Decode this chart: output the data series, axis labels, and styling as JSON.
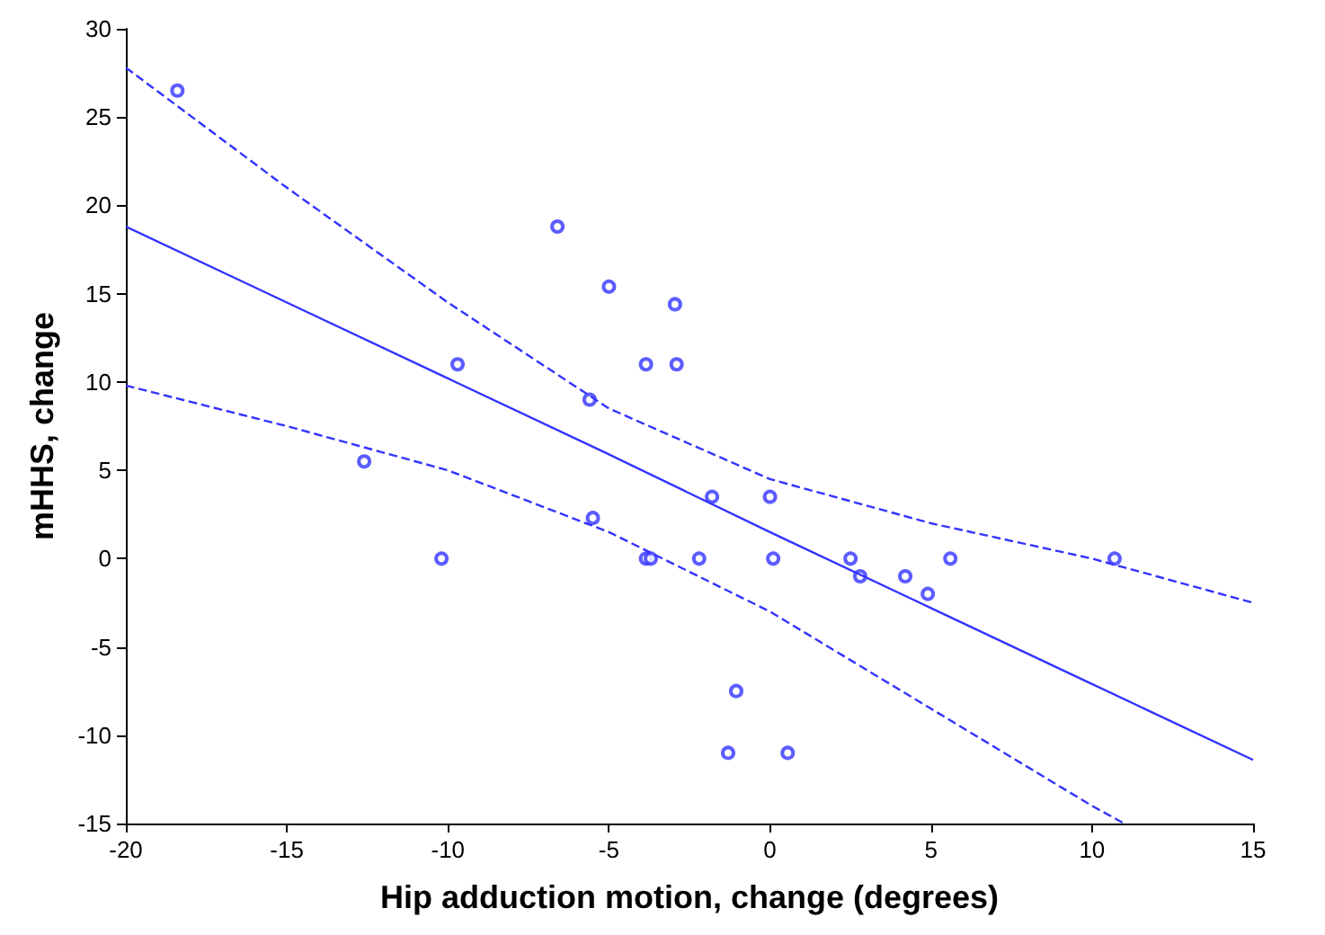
{
  "chart_data": {
    "type": "scatter",
    "xlabel": "Hip adduction motion, change (degrees)",
    "ylabel": "mHHS, change",
    "xlim": [
      -20,
      15
    ],
    "ylim": [
      -15,
      30
    ],
    "xticks": [
      -20,
      -15,
      -10,
      -5,
      0,
      5,
      10,
      15
    ],
    "yticks": [
      -15,
      -10,
      -5,
      0,
      5,
      10,
      15,
      20,
      25,
      30
    ],
    "marker": "circle",
    "series": [
      {
        "color": "#3333ff",
        "x": [
          -18.4,
          -12.6,
          -10.2,
          -9.7,
          -6.6,
          -5.0,
          -5.6,
          -5.5,
          -3.85,
          -2.95,
          -2.9,
          -3.85,
          -3.7,
          -2.2,
          -1.8,
          0,
          0.1,
          -1.05,
          -1.3,
          0.55,
          2.5,
          2.8,
          4.2,
          4.9,
          5.6,
          10.7
        ],
        "values": [
          26.5,
          5.5,
          0,
          11,
          18.8,
          15.4,
          9,
          2.3,
          11,
          14.4,
          11,
          0,
          0,
          0,
          3.5,
          3.5,
          0,
          -7.5,
          -11,
          -11,
          0,
          -1,
          -1,
          -2,
          0,
          0
        ]
      },
      {
        "type": "line",
        "color": "#3333ff",
        "marker": "none",
        "line_style": "solid",
        "x": [
          -20,
          -15,
          -10,
          -5,
          0,
          5,
          10,
          15
        ],
        "values": [
          18.8,
          14.5,
          10.2,
          5.9,
          1.5,
          -2.8,
          -7.1,
          -11.4
        ]
      },
      {
        "type": "line",
        "color": "#3333ff",
        "marker": "none",
        "line_style": "dashed",
        "x": [
          -20,
          -15,
          -10,
          -5,
          0,
          5,
          10,
          11
        ],
        "values": [
          9.8,
          7.5,
          5,
          1.5,
          -3,
          -8.5,
          -14,
          -15
        ]
      },
      {
        "type": "line",
        "color": "#3333ff",
        "marker": "none",
        "line_style": "dashed",
        "x": [
          -20,
          -15,
          -10,
          -5,
          0,
          5,
          10,
          15
        ],
        "values": [
          27.8,
          21,
          14.5,
          8.5,
          4.5,
          2,
          0,
          -2.5
        ]
      }
    ]
  }
}
